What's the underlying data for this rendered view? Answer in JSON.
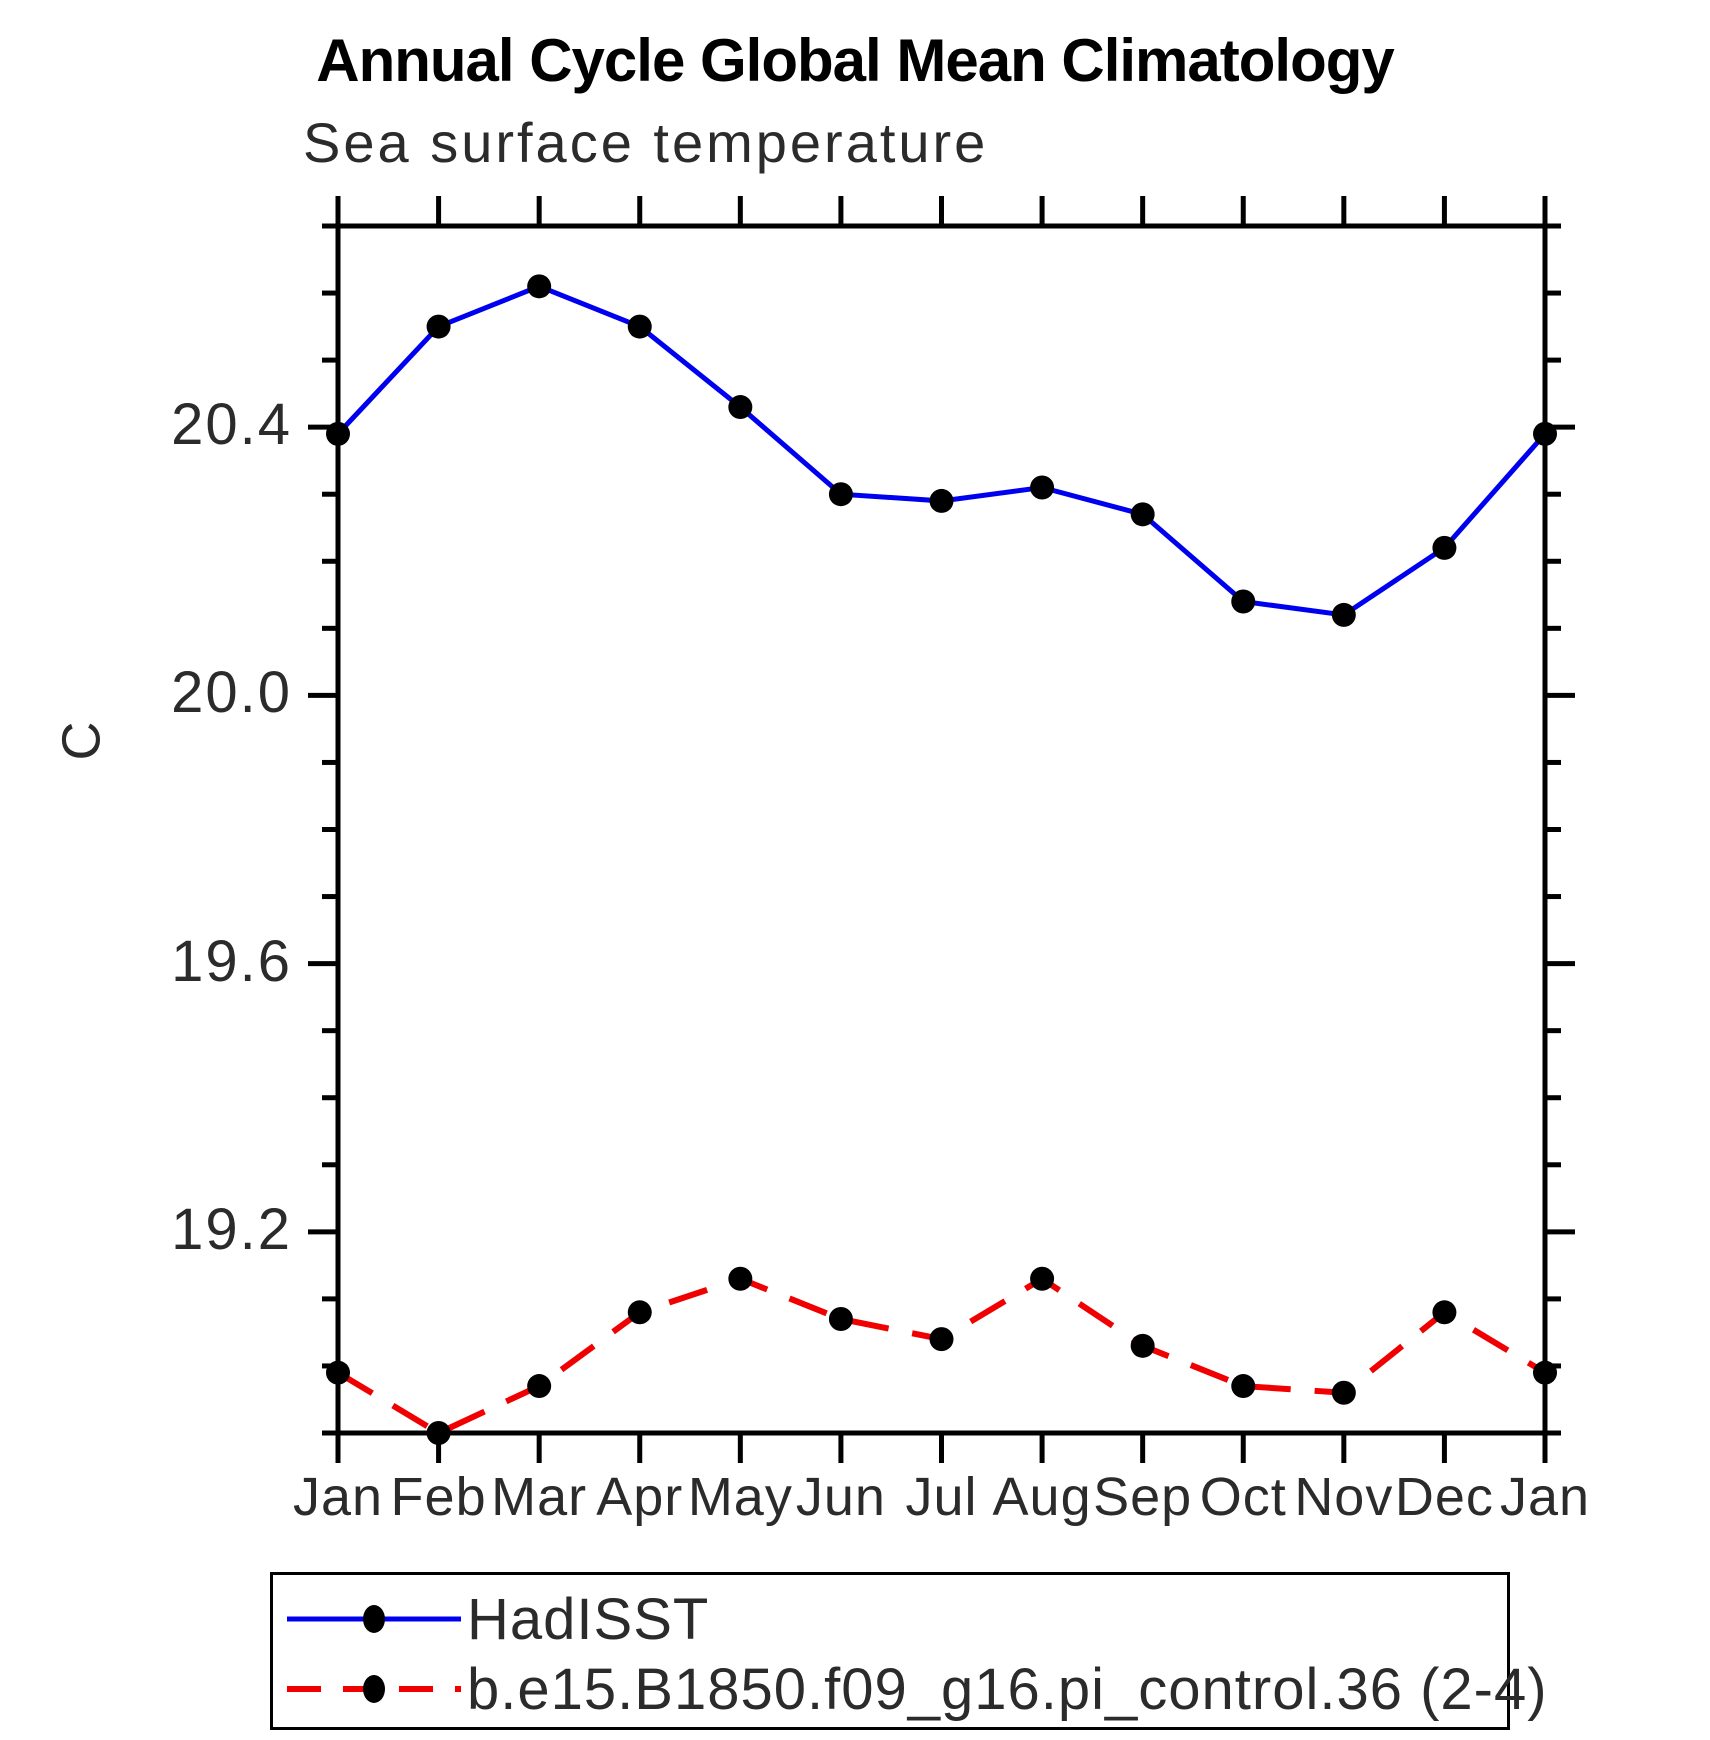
{
  "chart_data": {
    "type": "line",
    "title": "Annual Cycle Global Mean Climatology",
    "subtitle": "Sea surface temperature",
    "ylabel": "C",
    "xlabel": "",
    "x_categories": [
      "Jan",
      "Feb",
      "Mar",
      "Apr",
      "May",
      "Jun",
      "Jul",
      "Aug",
      "Sep",
      "Oct",
      "Nov",
      "Dec",
      "Jan"
    ],
    "ylim": [
      18.9,
      20.7
    ],
    "y_major_ticks": [
      20.4,
      20.0,
      19.6,
      19.2
    ],
    "y_minor_step": 0.1,
    "grid": false,
    "legend_position": "bottom-left-box",
    "axis_color": "#000000",
    "marker_color": "#000000",
    "series": [
      {
        "name": "HadISST",
        "color": "#0000f0",
        "line": "solid",
        "marker": "circle",
        "values": [
          20.39,
          20.55,
          20.61,
          20.55,
          20.43,
          20.3,
          20.29,
          20.31,
          20.27,
          20.14,
          20.12,
          20.22,
          20.39
        ]
      },
      {
        "name": "b.e15.B1850.f09_g16.pi_control.36 (2-4)",
        "color": "#f00000",
        "line": "dashed",
        "marker": "circle",
        "values": [
          18.99,
          18.9,
          18.97,
          19.08,
          19.13,
          19.07,
          19.04,
          19.13,
          19.03,
          18.97,
          18.96,
          19.08,
          18.99
        ]
      }
    ]
  }
}
